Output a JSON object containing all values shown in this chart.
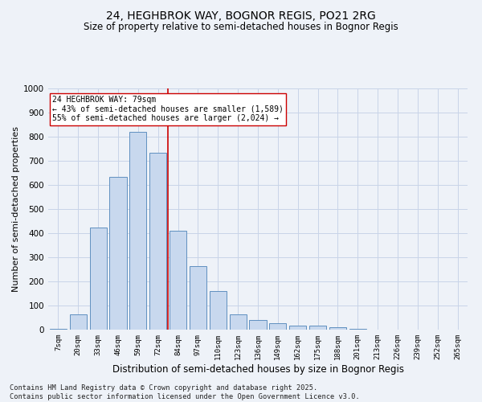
{
  "title1": "24, HEGHBROK WAY, BOGNOR REGIS, PO21 2RG",
  "title2": "Size of property relative to semi-detached houses in Bognor Regis",
  "xlabel": "Distribution of semi-detached houses by size in Bognor Regis",
  "ylabel": "Number of semi-detached properties",
  "categories": [
    "7sqm",
    "20sqm",
    "33sqm",
    "46sqm",
    "59sqm",
    "72sqm",
    "84sqm",
    "97sqm",
    "110sqm",
    "123sqm",
    "136sqm",
    "149sqm",
    "162sqm",
    "175sqm",
    "188sqm",
    "201sqm",
    "213sqm",
    "226sqm",
    "239sqm",
    "252sqm",
    "265sqm"
  ],
  "values": [
    5,
    65,
    425,
    635,
    820,
    735,
    410,
    265,
    160,
    65,
    40,
    28,
    18,
    18,
    10,
    5,
    0,
    0,
    0,
    0,
    0
  ],
  "bar_color": "#c8d8ee",
  "bar_edge_color": "#6090c0",
  "grid_color": "#c8d4e8",
  "vline_color": "#cc0000",
  "annotation_text": "24 HEGHBROK WAY: 79sqm\n← 43% of semi-detached houses are smaller (1,589)\n55% of semi-detached houses are larger (2,024) →",
  "annotation_box_color": "#ffffff",
  "annotation_box_edge": "#cc0000",
  "footer": "Contains HM Land Registry data © Crown copyright and database right 2025.\nContains public sector information licensed under the Open Government Licence v3.0.",
  "ylim": [
    0,
    1000
  ],
  "background_color": "#eef2f8",
  "vline_x": 5.5
}
